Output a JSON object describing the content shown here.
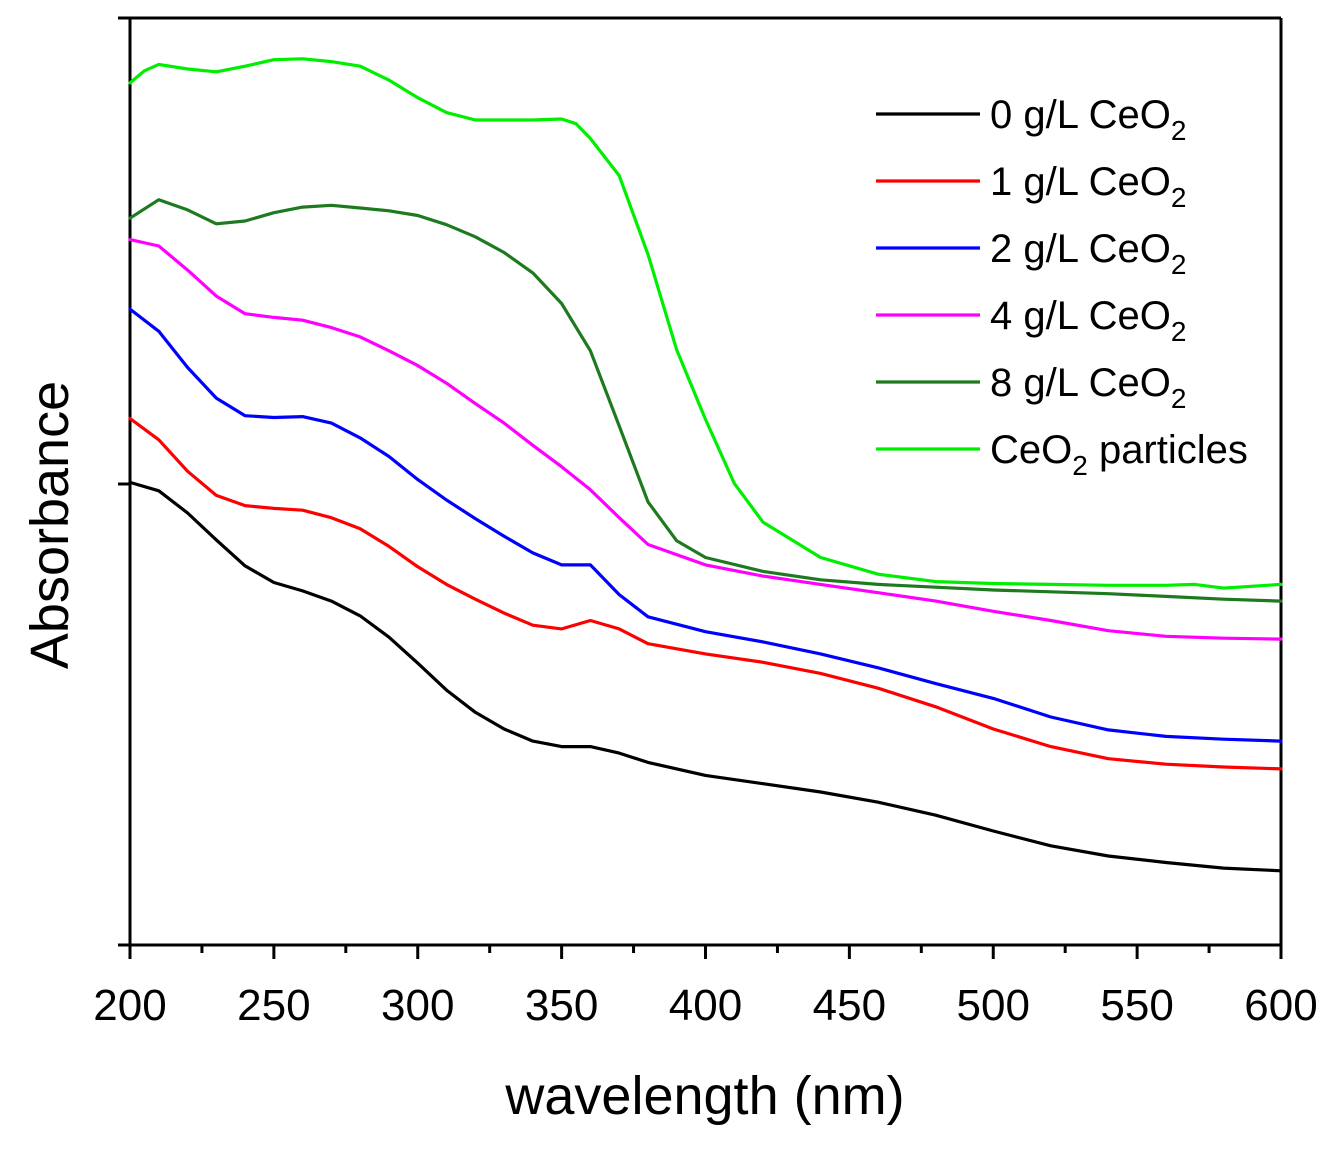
{
  "chart_data": {
    "type": "line",
    "title": "",
    "xlabel": "wavelength (nm)",
    "ylabel": "Absorbance",
    "xlim": [
      200,
      600
    ],
    "ylim": [
      0,
      1
    ],
    "x_ticks": [
      200,
      250,
      300,
      350,
      400,
      450,
      500,
      550,
      600
    ],
    "y_ticks_labeled": false,
    "legend_position": "top-right",
    "grid": false,
    "series": [
      {
        "name": "0 g/L CeO₂",
        "label_main": "0 g/L CeO",
        "label_sub": "2",
        "label_tail": "",
        "color": "#000000",
        "points": [
          [
            200,
            0.499
          ],
          [
            210,
            0.49
          ],
          [
            220,
            0.466
          ],
          [
            230,
            0.437
          ],
          [
            240,
            0.409
          ],
          [
            250,
            0.391
          ],
          [
            260,
            0.382
          ],
          [
            270,
            0.371
          ],
          [
            280,
            0.355
          ],
          [
            290,
            0.332
          ],
          [
            300,
            0.304
          ],
          [
            310,
            0.275
          ],
          [
            320,
            0.251
          ],
          [
            330,
            0.233
          ],
          [
            340,
            0.22
          ],
          [
            350,
            0.214
          ],
          [
            360,
            0.214
          ],
          [
            370,
            0.207
          ],
          [
            380,
            0.197
          ],
          [
            400,
            0.183
          ],
          [
            420,
            0.174
          ],
          [
            440,
            0.165
          ],
          [
            460,
            0.154
          ],
          [
            480,
            0.14
          ],
          [
            500,
            0.123
          ],
          [
            520,
            0.107
          ],
          [
            540,
            0.096
          ],
          [
            560,
            0.089
          ],
          [
            580,
            0.083
          ],
          [
            600,
            0.08
          ]
        ]
      },
      {
        "name": "1 g/L CeO₂",
        "label_main": "1 g/L CeO",
        "label_sub": "2",
        "label_tail": "",
        "color": "#ff0000",
        "points": [
          [
            200,
            0.568
          ],
          [
            210,
            0.545
          ],
          [
            220,
            0.511
          ],
          [
            230,
            0.485
          ],
          [
            240,
            0.474
          ],
          [
            250,
            0.471
          ],
          [
            260,
            0.469
          ],
          [
            270,
            0.461
          ],
          [
            280,
            0.449
          ],
          [
            290,
            0.43
          ],
          [
            300,
            0.408
          ],
          [
            310,
            0.389
          ],
          [
            320,
            0.373
          ],
          [
            330,
            0.358
          ],
          [
            340,
            0.345
          ],
          [
            350,
            0.341
          ],
          [
            360,
            0.35
          ],
          [
            370,
            0.341
          ],
          [
            380,
            0.325
          ],
          [
            400,
            0.314
          ],
          [
            420,
            0.305
          ],
          [
            440,
            0.293
          ],
          [
            460,
            0.277
          ],
          [
            480,
            0.257
          ],
          [
            500,
            0.233
          ],
          [
            520,
            0.214
          ],
          [
            540,
            0.201
          ],
          [
            560,
            0.195
          ],
          [
            580,
            0.192
          ],
          [
            600,
            0.19
          ]
        ]
      },
      {
        "name": "2 g/L CeO₂",
        "label_main": "2 g/L CeO",
        "label_sub": "2",
        "label_tail": "",
        "color": "#0000ff",
        "points": [
          [
            200,
            0.686
          ],
          [
            210,
            0.662
          ],
          [
            220,
            0.623
          ],
          [
            230,
            0.59
          ],
          [
            240,
            0.571
          ],
          [
            250,
            0.569
          ],
          [
            260,
            0.57
          ],
          [
            270,
            0.563
          ],
          [
            280,
            0.547
          ],
          [
            290,
            0.527
          ],
          [
            300,
            0.502
          ],
          [
            310,
            0.48
          ],
          [
            320,
            0.46
          ],
          [
            330,
            0.441
          ],
          [
            340,
            0.423
          ],
          [
            350,
            0.41
          ],
          [
            360,
            0.41
          ],
          [
            370,
            0.378
          ],
          [
            380,
            0.354
          ],
          [
            400,
            0.338
          ],
          [
            420,
            0.327
          ],
          [
            440,
            0.314
          ],
          [
            460,
            0.299
          ],
          [
            480,
            0.282
          ],
          [
            500,
            0.266
          ],
          [
            520,
            0.246
          ],
          [
            540,
            0.232
          ],
          [
            560,
            0.225
          ],
          [
            580,
            0.222
          ],
          [
            600,
            0.22
          ]
        ]
      },
      {
        "name": "4 g/L CeO₂",
        "label_main": "4 g/L CeO",
        "label_sub": "2",
        "label_tail": "",
        "color": "#ff00ff",
        "points": [
          [
            200,
            0.761
          ],
          [
            210,
            0.754
          ],
          [
            220,
            0.728
          ],
          [
            230,
            0.7
          ],
          [
            240,
            0.681
          ],
          [
            250,
            0.677
          ],
          [
            260,
            0.674
          ],
          [
            270,
            0.666
          ],
          [
            280,
            0.656
          ],
          [
            290,
            0.641
          ],
          [
            300,
            0.625
          ],
          [
            310,
            0.606
          ],
          [
            320,
            0.584
          ],
          [
            330,
            0.563
          ],
          [
            340,
            0.539
          ],
          [
            350,
            0.516
          ],
          [
            360,
            0.491
          ],
          [
            370,
            0.461
          ],
          [
            380,
            0.432
          ],
          [
            400,
            0.41
          ],
          [
            420,
            0.398
          ],
          [
            440,
            0.389
          ],
          [
            460,
            0.38
          ],
          [
            480,
            0.371
          ],
          [
            500,
            0.36
          ],
          [
            520,
            0.35
          ],
          [
            540,
            0.339
          ],
          [
            560,
            0.333
          ],
          [
            580,
            0.331
          ],
          [
            600,
            0.33
          ]
        ]
      },
      {
        "name": "8 g/L CeO₂",
        "label_main": "8 g/L CeO",
        "label_sub": "2",
        "label_tail": "",
        "color": "#1e7a1e",
        "points": [
          [
            200,
            0.784
          ],
          [
            210,
            0.804
          ],
          [
            220,
            0.793
          ],
          [
            230,
            0.778
          ],
          [
            240,
            0.781
          ],
          [
            250,
            0.79
          ],
          [
            260,
            0.796
          ],
          [
            270,
            0.798
          ],
          [
            280,
            0.795
          ],
          [
            290,
            0.792
          ],
          [
            300,
            0.787
          ],
          [
            310,
            0.777
          ],
          [
            320,
            0.764
          ],
          [
            330,
            0.747
          ],
          [
            340,
            0.725
          ],
          [
            350,
            0.692
          ],
          [
            360,
            0.641
          ],
          [
            370,
            0.56
          ],
          [
            380,
            0.478
          ],
          [
            390,
            0.436
          ],
          [
            400,
            0.418
          ],
          [
            420,
            0.403
          ],
          [
            440,
            0.394
          ],
          [
            460,
            0.389
          ],
          [
            480,
            0.386
          ],
          [
            500,
            0.383
          ],
          [
            520,
            0.381
          ],
          [
            540,
            0.379
          ],
          [
            560,
            0.376
          ],
          [
            580,
            0.373
          ],
          [
            600,
            0.371
          ]
        ]
      },
      {
        "name": "CeO₂ particles",
        "label_main": "CeO",
        "label_sub": "2",
        "label_tail": " particles",
        "color": "#00ee00",
        "points": [
          [
            200,
            0.93
          ],
          [
            205,
            0.943
          ],
          [
            210,
            0.95
          ],
          [
            220,
            0.945
          ],
          [
            230,
            0.942
          ],
          [
            240,
            0.948
          ],
          [
            250,
            0.955
          ],
          [
            260,
            0.956
          ],
          [
            270,
            0.953
          ],
          [
            280,
            0.948
          ],
          [
            290,
            0.933
          ],
          [
            300,
            0.914
          ],
          [
            310,
            0.898
          ],
          [
            320,
            0.89
          ],
          [
            330,
            0.89
          ],
          [
            340,
            0.89
          ],
          [
            350,
            0.891
          ],
          [
            355,
            0.886
          ],
          [
            360,
            0.87
          ],
          [
            370,
            0.83
          ],
          [
            380,
            0.745
          ],
          [
            390,
            0.642
          ],
          [
            400,
            0.567
          ],
          [
            410,
            0.498
          ],
          [
            420,
            0.456
          ],
          [
            440,
            0.418
          ],
          [
            460,
            0.4
          ],
          [
            480,
            0.392
          ],
          [
            500,
            0.39
          ],
          [
            520,
            0.389
          ],
          [
            540,
            0.388
          ],
          [
            560,
            0.388
          ],
          [
            570,
            0.389
          ],
          [
            580,
            0.385
          ],
          [
            600,
            0.389
          ]
        ]
      }
    ]
  }
}
